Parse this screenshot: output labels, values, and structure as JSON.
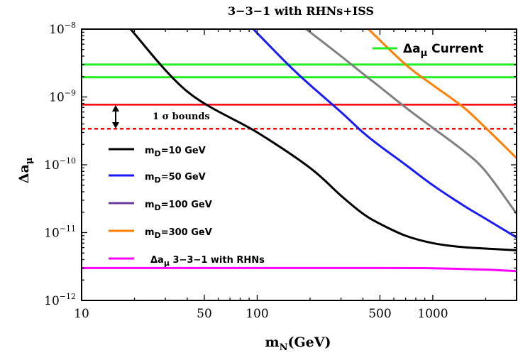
{
  "chart_data": {
    "type": "line",
    "title": "3−3−1 with RHNs+ISS",
    "xlabel": {
      "main": "m",
      "sub": "N",
      "rest": "(GeV)"
    },
    "ylabel": {
      "main": "Δa",
      "sub": "μ"
    },
    "x_scale": "log",
    "y_scale": "log",
    "xlim": [
      10,
      3000
    ],
    "ylim": [
      1e-12,
      1e-08
    ],
    "x_ticks": [
      {
        "value": 10,
        "label": "10"
      },
      {
        "value": 50,
        "label": "50"
      },
      {
        "value": 100,
        "label": "100"
      },
      {
        "value": 500,
        "label": "500"
      },
      {
        "value": 1000,
        "label": "1000"
      }
    ],
    "y_ticks": [
      {
        "value": 1e-12,
        "base": "10",
        "exp": "−12"
      },
      {
        "value": 1e-11,
        "base": "10",
        "exp": "−11"
      },
      {
        "value": 1e-10,
        "base": "10",
        "exp": "−10"
      },
      {
        "value": 1e-09,
        "base": "10",
        "exp": "−9"
      },
      {
        "value": 1e-08,
        "base": "10",
        "exp": "−8"
      }
    ],
    "grid": false,
    "legend_placement": "bottom-left",
    "series": [
      {
        "name": {
          "pre": "m",
          "sub": "D",
          "post": "=10 GeV"
        },
        "color": "#000000",
        "points": [
          [
            19,
            1e-08
          ],
          [
            40,
            1.2e-09
          ],
          [
            100,
            3e-10
          ],
          [
            200,
            9e-11
          ],
          [
            300,
            3.5e-11
          ],
          [
            400,
            1.9e-11
          ],
          [
            500,
            1.35e-11
          ],
          [
            700,
            9e-12
          ],
          [
            1000,
            7e-12
          ],
          [
            1500,
            6.1e-12
          ],
          [
            3000,
            5.5e-12
          ]
        ]
      },
      {
        "name": {
          "pre": "m",
          "sub": "D",
          "post": "=50 GeV"
        },
        "color": "#1a1aff",
        "points": [
          [
            95,
            1e-08
          ],
          [
            150,
            3e-09
          ],
          [
            200,
            1.5e-09
          ],
          [
            300,
            6e-10
          ],
          [
            400,
            3e-10
          ],
          [
            500,
            1.9e-10
          ],
          [
            700,
            1e-10
          ],
          [
            1000,
            5e-11
          ],
          [
            1500,
            2.5e-11
          ],
          [
            2000,
            1.6e-11
          ],
          [
            3000,
            8.5e-12
          ]
        ]
      },
      {
        "name": {
          "pre": "m",
          "sub": "D",
          "post": "=100 GeV"
        },
        "color": "#808080",
        "points": [
          [
            190,
            1e-08
          ],
          [
            300,
            4e-09
          ],
          [
            400,
            2.2e-09
          ],
          [
            500,
            1.4e-09
          ],
          [
            700,
            7e-10
          ],
          [
            1000,
            3.5e-10
          ],
          [
            1500,
            1.6e-10
          ],
          [
            2000,
            8e-11
          ],
          [
            3000,
            1.9e-11
          ]
        ]
      },
      {
        "name": {
          "pre": "m",
          "sub": "D",
          "post": "=300 GeV"
        },
        "color": "#ff8000",
        "points": [
          [
            430,
            1e-08
          ],
          [
            700,
            3e-09
          ],
          [
            1000,
            1.5e-09
          ],
          [
            1500,
            7e-10
          ],
          [
            2000,
            3.5e-10
          ],
          [
            2500,
            2e-10
          ],
          [
            3000,
            1.25e-10
          ]
        ]
      },
      {
        "name": {
          "pre": "Δa",
          "sub": "μ",
          "post": " 3−3−1 with RHNs"
        },
        "color": "#ff00ff",
        "points": [
          [
            10,
            3e-12
          ],
          [
            500,
            3e-12
          ],
          [
            1000,
            2.98e-12
          ],
          [
            2000,
            2.85e-12
          ],
          [
            3000,
            2.7e-12
          ]
        ]
      }
    ],
    "bands": {
      "current": {
        "name": {
          "pre": "Δa",
          "sub": "μ",
          "post": " Current"
        },
        "color": "#22ee22",
        "values": [
          3e-09,
          1.95e-09
        ]
      },
      "bound_upper": {
        "value": 7.7e-10,
        "color": "#ff0000"
      },
      "bound_lower": {
        "value": 3.4e-10,
        "color": "#ff0000"
      },
      "annotation": "1 σ bounds"
    }
  }
}
